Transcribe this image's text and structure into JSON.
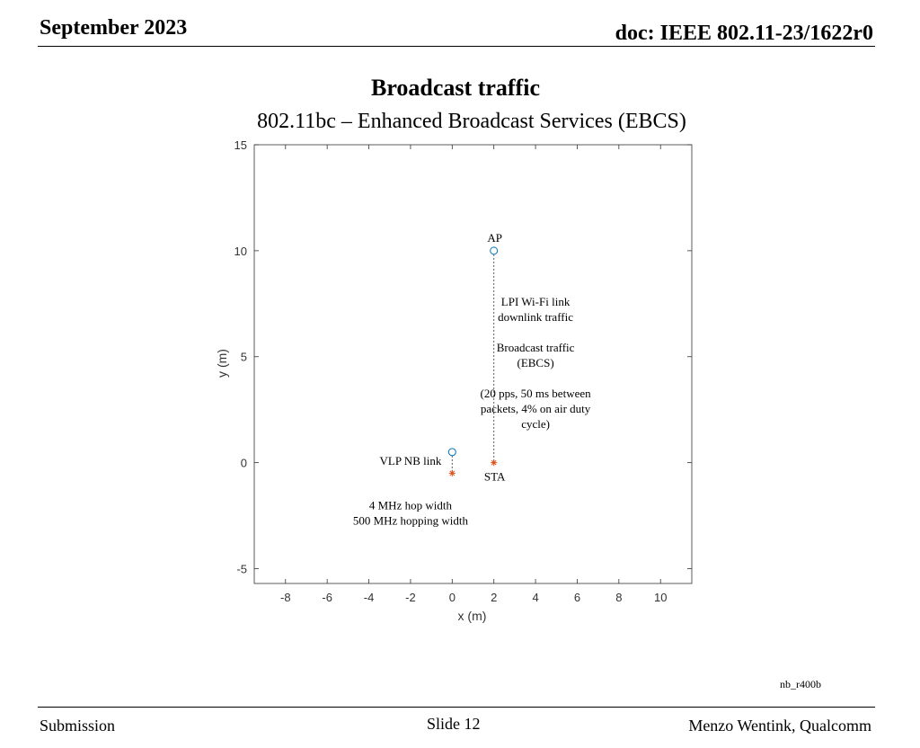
{
  "header": {
    "date": "September 2023",
    "doc": "doc: IEEE 802.11-23/1622r0"
  },
  "slide": {
    "title": "Broadcast traffic",
    "subtitle": "802.11bc – Enhanced Broadcast Services (EBCS)",
    "figure_id": "nb_r400b"
  },
  "footer": {
    "left": "Submission",
    "center": "Slide 12",
    "right": "Menzo Wentink, Qualcomm"
  },
  "chart_data": {
    "type": "scatter",
    "xlabel": "x (m)",
    "ylabel": "y (m)",
    "xlim": [
      -9.5,
      11.5
    ],
    "ylim": [
      -5.7,
      15
    ],
    "xticks": [
      -8,
      -6,
      -4,
      -2,
      0,
      2,
      4,
      6,
      8,
      10
    ],
    "yticks": [
      -5,
      0,
      5,
      10,
      15
    ],
    "grid": false,
    "colors": {
      "circle": "#0072BD",
      "star": "#D95319",
      "link": "#555555"
    },
    "points": [
      {
        "x": 2,
        "y": 10,
        "marker": "circle",
        "label": "AP"
      },
      {
        "x": 2,
        "y": 0,
        "marker": "star",
        "label": "STA"
      },
      {
        "x": 0,
        "y": 0.5,
        "marker": "circle",
        "label": ""
      },
      {
        "x": 0,
        "y": -0.5,
        "marker": "star",
        "label": ""
      }
    ],
    "links": [
      {
        "from": [
          2,
          10
        ],
        "to": [
          2,
          0
        ],
        "style": "dotted"
      },
      {
        "from": [
          0,
          0.5
        ],
        "to": [
          0,
          -0.5
        ],
        "style": "dotted"
      }
    ],
    "annotations": [
      {
        "x": 4,
        "y": 7.4,
        "lines": [
          "LPI Wi-Fi link",
          "downlink traffic",
          "",
          "Broadcast traffic",
          "(EBCS)",
          "",
          "(20 pps, 50 ms between",
          "packets, 4% on air duty",
          "cycle)"
        ]
      },
      {
        "x": -2,
        "y": -0.1,
        "lines": [
          "VLP NB link"
        ]
      },
      {
        "x": -2,
        "y": -2.2,
        "lines": [
          "4 MHz hop width",
          "500 MHz hopping width"
        ]
      }
    ]
  }
}
